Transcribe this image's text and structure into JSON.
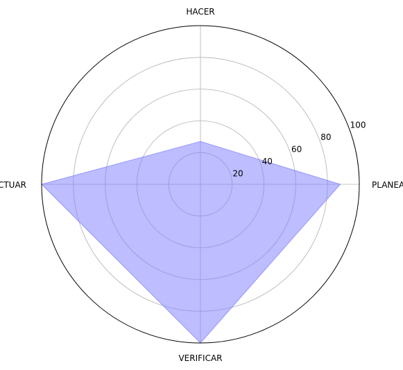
{
  "chart_data": {
    "type": "radar",
    "categories": [
      "PLANEAR",
      "HACER",
      "ACTUAR",
      "VERIFICAR"
    ],
    "series": [
      {
        "values": [
          88,
          27,
          100,
          100
        ],
        "color": "#7b7bff",
        "opacity": 0.5
      }
    ],
    "radial_ticks": [
      20,
      40,
      60,
      80,
      100
    ],
    "rlim": [
      0,
      100
    ],
    "grid": true,
    "title": "",
    "xlabel": "",
    "ylabel": ""
  }
}
